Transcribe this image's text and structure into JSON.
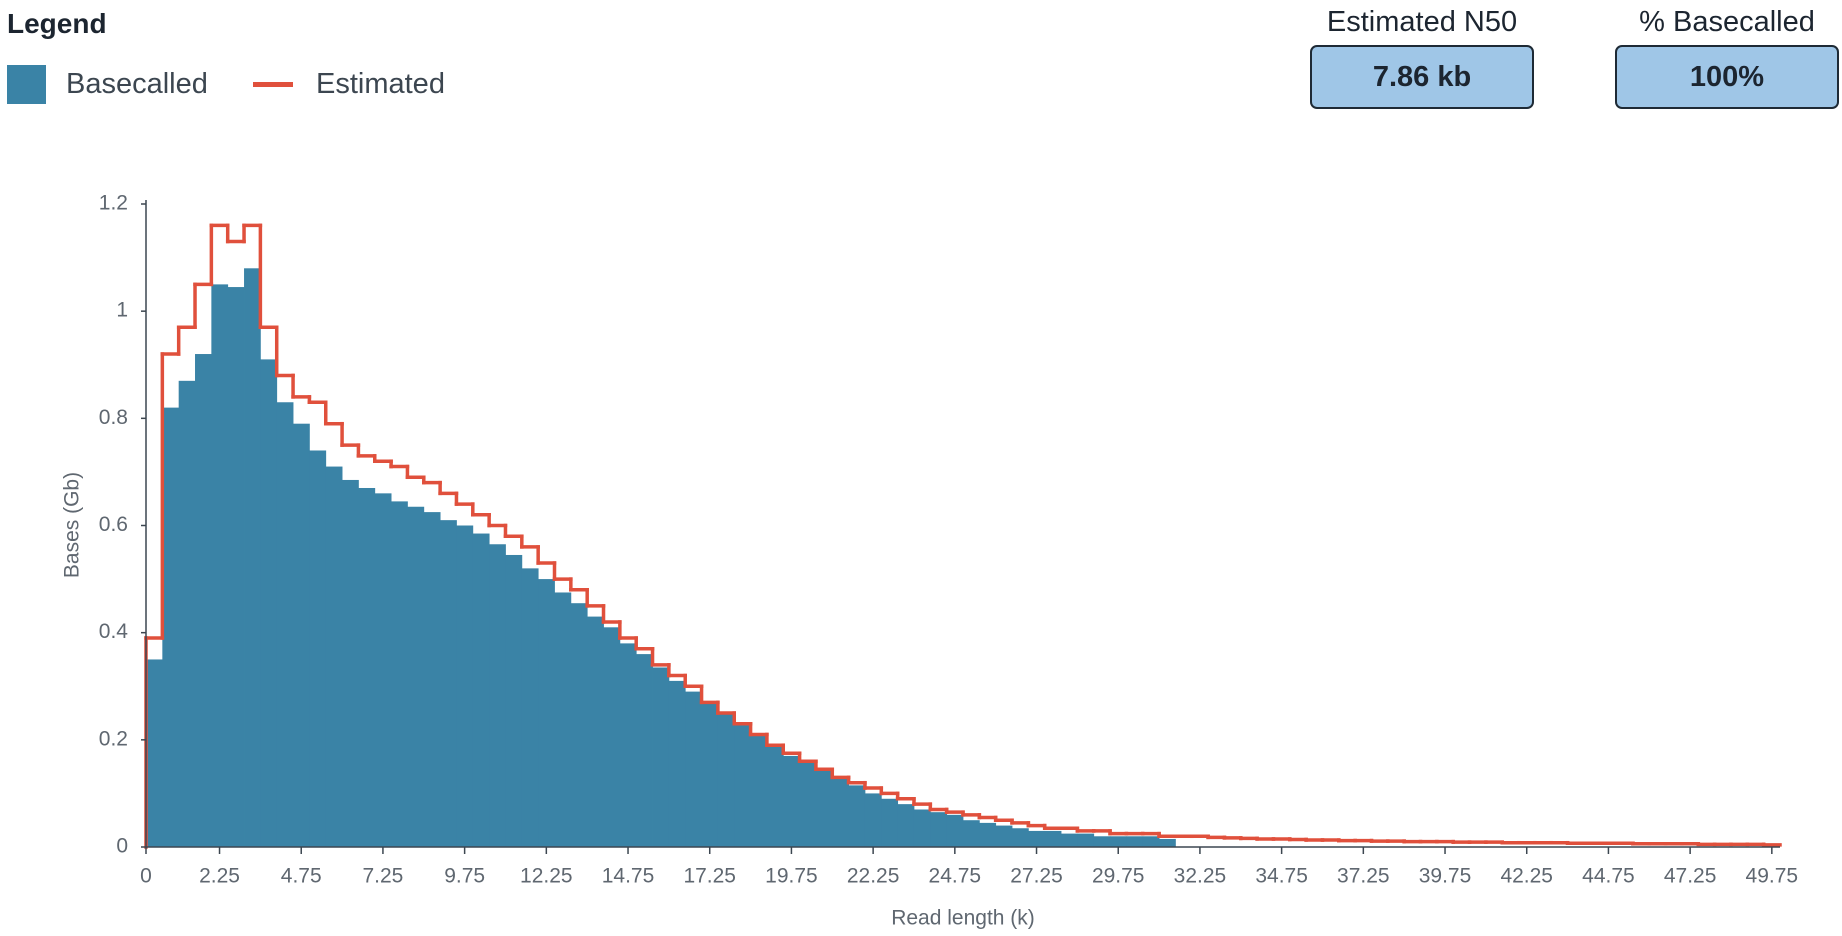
{
  "chart_data": {
    "type": "histogram",
    "legend_title": "Legend",
    "stats": [
      {
        "label": "Estimated N50",
        "value": "7.86 kb"
      },
      {
        "label": "% Basecalled",
        "value": "100%"
      }
    ],
    "xlabel": "Read length (k)",
    "ylabel": "Bases (Gb)",
    "bins": [
      0,
      0.5,
      1,
      1.5,
      2,
      2.5,
      3,
      3.5,
      4,
      4.5,
      5,
      5.5,
      6,
      6.5,
      7,
      7.5,
      8,
      8.5,
      9,
      9.5,
      10,
      10.5,
      11,
      11.5,
      12,
      12.5,
      13,
      13.5,
      14,
      14.5,
      15,
      15.5,
      16,
      16.5,
      17,
      17.5,
      18,
      18.5,
      19,
      19.5,
      20,
      20.5,
      21,
      21.5,
      22,
      22.5,
      23,
      23.5,
      24,
      24.5,
      25,
      25.5,
      26,
      26.5,
      27,
      27.5,
      28,
      28.5,
      29,
      29.5,
      30,
      30.5,
      31,
      31.5,
      32,
      32.5,
      33,
      33.5,
      34,
      34.5,
      35,
      35.5,
      36,
      36.5,
      37,
      37.5,
      38,
      38.5,
      39,
      39.5,
      40,
      40.5,
      41,
      41.5,
      42,
      42.5,
      43,
      43.5,
      44,
      44.5,
      45,
      45.5,
      46,
      46.5,
      47,
      47.5,
      48,
      48.5,
      49,
      49.5,
      50
    ],
    "series": [
      {
        "name": "Basecalled",
        "color": "#3a83a6",
        "style": "bars",
        "values": [
          0.35,
          0.82,
          0.87,
          0.92,
          1.05,
          1.045,
          1.08,
          0.91,
          0.83,
          0.79,
          0.74,
          0.71,
          0.685,
          0.67,
          0.66,
          0.645,
          0.635,
          0.625,
          0.61,
          0.6,
          0.585,
          0.565,
          0.545,
          0.52,
          0.5,
          0.475,
          0.455,
          0.43,
          0.41,
          0.38,
          0.36,
          0.335,
          0.31,
          0.29,
          0.27,
          0.25,
          0.23,
          0.21,
          0.19,
          0.17,
          0.16,
          0.145,
          0.13,
          0.115,
          0.1,
          0.09,
          0.08,
          0.07,
          0.065,
          0.06,
          0.05,
          0.045,
          0.04,
          0.035,
          0.03,
          0.03,
          0.025,
          0.025,
          0.02,
          0.02,
          0.02,
          0.02,
          0.015,
          null,
          null,
          null,
          null,
          null,
          null,
          null,
          null,
          null,
          null,
          null,
          null,
          null,
          null,
          null,
          null,
          null,
          null,
          null,
          null,
          null,
          null,
          null,
          null,
          null,
          null,
          null,
          null,
          null,
          null,
          null,
          null,
          null,
          null,
          null,
          null,
          null
        ]
      },
      {
        "name": "Estimated",
        "color": "#e0503c",
        "style": "step",
        "values": [
          0.39,
          0.92,
          0.97,
          1.05,
          1.16,
          1.13,
          1.16,
          0.97,
          0.88,
          0.84,
          0.83,
          0.79,
          0.75,
          0.73,
          0.72,
          0.71,
          0.69,
          0.68,
          0.66,
          0.64,
          0.62,
          0.6,
          0.58,
          0.56,
          0.53,
          0.5,
          0.48,
          0.45,
          0.42,
          0.39,
          0.37,
          0.34,
          0.32,
          0.3,
          0.27,
          0.25,
          0.23,
          0.21,
          0.19,
          0.175,
          0.16,
          0.145,
          0.13,
          0.12,
          0.11,
          0.1,
          0.09,
          0.08,
          0.07,
          0.065,
          0.06,
          0.055,
          0.05,
          0.045,
          0.04,
          0.035,
          0.035,
          0.03,
          0.03,
          0.025,
          0.025,
          0.025,
          0.02,
          0.02,
          0.02,
          0.018,
          0.017,
          0.016,
          0.015,
          0.015,
          0.014,
          0.013,
          0.013,
          0.012,
          0.012,
          0.011,
          0.011,
          0.01,
          0.01,
          0.01,
          0.009,
          0.009,
          0.009,
          0.008,
          0.008,
          0.008,
          0.008,
          0.007,
          0.007,
          0.007,
          0.007,
          0.006,
          0.006,
          0.006,
          0.006,
          0.005,
          0.005,
          0.005,
          0.005,
          0.004
        ]
      }
    ],
    "xlim": [
      0,
      50
    ],
    "ylim": [
      0,
      1.2
    ],
    "xticks": [
      0,
      2.25,
      4.75,
      7.25,
      9.75,
      12.25,
      14.75,
      17.25,
      19.75,
      22.25,
      24.75,
      27.25,
      29.75,
      32.25,
      34.75,
      37.25,
      39.75,
      42.25,
      44.75,
      47.25,
      49.75
    ],
    "yticks": [
      0,
      0.2,
      0.4,
      0.6,
      0.8,
      1,
      1.2
    ],
    "grid": false
  }
}
